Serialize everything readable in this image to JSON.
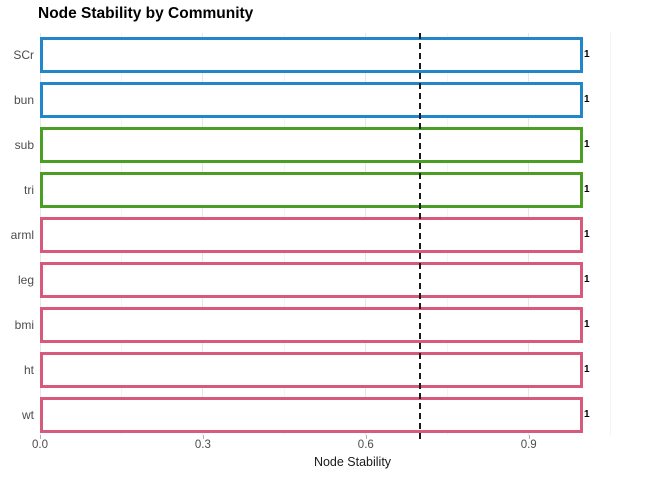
{
  "chart_data": {
    "type": "bar",
    "orientation": "horizontal",
    "title": "Node Stability by Community",
    "xlabel": "Node Stability",
    "ylabel": "",
    "xlim": [
      0.0,
      1.05
    ],
    "x_ticks": [
      0.0,
      0.3,
      0.6,
      0.9
    ],
    "x_tick_labels": [
      "0.0",
      "0.3",
      "0.6",
      "0.9"
    ],
    "x_minor_ticks": [
      0.15,
      0.45,
      0.75,
      1.05
    ],
    "reference_line_x": 0.7,
    "categories": [
      "SCr",
      "bun",
      "sub",
      "tri",
      "arml",
      "leg",
      "bmi",
      "ht",
      "wt"
    ],
    "values": [
      1,
      1,
      1,
      1,
      1,
      1,
      1,
      1,
      1
    ],
    "value_labels": [
      "1",
      "1",
      "1",
      "1",
      "1",
      "1",
      "1",
      "1",
      "1"
    ],
    "bar_colors": [
      "#2287C8",
      "#2287C8",
      "#4A9E23",
      "#4A9E23",
      "#D75A7D",
      "#D75A7D",
      "#D75A7D",
      "#D75A7D",
      "#D75A7D"
    ],
    "bar_fill": "#FFFFFF",
    "grid": true,
    "legend": "none"
  },
  "colors": {
    "community_blue": "#2287C8",
    "community_green": "#4A9E23",
    "community_pink": "#D75A7D",
    "major_gridline": "#E7E7E7",
    "minor_gridline": "#F4F4F4",
    "axis_text": "#4D4D4D",
    "reference_line": "#1A1A1A",
    "title_text": "#000000"
  }
}
